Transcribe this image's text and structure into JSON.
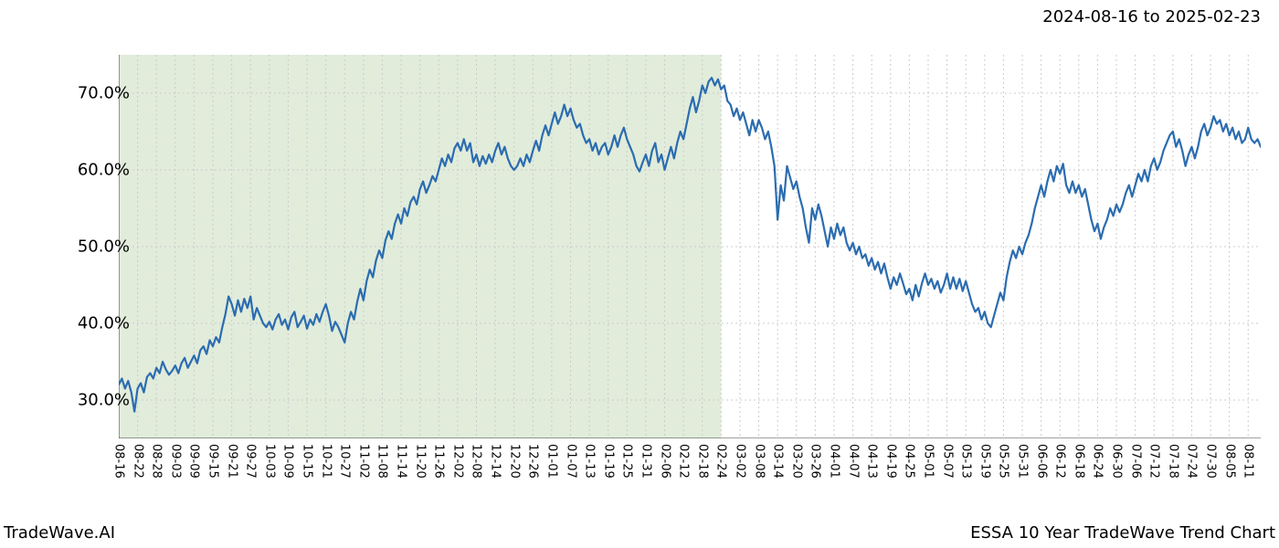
{
  "header": {
    "date_range": "2024-08-16 to 2025-02-23"
  },
  "footer": {
    "left": "TradeWave.AI",
    "right": "ESSA 10 Year TradeWave Trend Chart"
  },
  "chart": {
    "type": "line",
    "background_color": "#ffffff",
    "line_color": "#2b6cb0",
    "line_width": 2.2,
    "highlight_fill": "#dce9d5",
    "highlight_opacity": 0.85,
    "grid_color": "#cccccc",
    "grid_dash": "2,3",
    "axis_color": "#404040",
    "ylim": [
      25,
      75
    ],
    "xlim": [
      0,
      364
    ],
    "highlight_x": [
      0,
      192
    ],
    "y_ticks": [
      {
        "v": 30,
        "label": "30.0%"
      },
      {
        "v": 40,
        "label": "40.0%"
      },
      {
        "v": 50,
        "label": "50.0%"
      },
      {
        "v": 60,
        "label": "60.0%"
      },
      {
        "v": 70,
        "label": "70.0%"
      }
    ],
    "y_label_fontsize": 18,
    "x_ticks": [
      {
        "x": 0,
        "label": "08-16"
      },
      {
        "x": 6,
        "label": "08-22"
      },
      {
        "x": 12,
        "label": "08-28"
      },
      {
        "x": 18,
        "label": "09-03"
      },
      {
        "x": 24,
        "label": "09-09"
      },
      {
        "x": 30,
        "label": "09-15"
      },
      {
        "x": 36,
        "label": "09-21"
      },
      {
        "x": 42,
        "label": "09-27"
      },
      {
        "x": 48,
        "label": "10-03"
      },
      {
        "x": 54,
        "label": "10-09"
      },
      {
        "x": 60,
        "label": "10-15"
      },
      {
        "x": 66,
        "label": "10-21"
      },
      {
        "x": 72,
        "label": "10-27"
      },
      {
        "x": 78,
        "label": "11-02"
      },
      {
        "x": 84,
        "label": "11-08"
      },
      {
        "x": 90,
        "label": "11-14"
      },
      {
        "x": 96,
        "label": "11-20"
      },
      {
        "x": 102,
        "label": "11-26"
      },
      {
        "x": 108,
        "label": "12-02"
      },
      {
        "x": 114,
        "label": "12-08"
      },
      {
        "x": 120,
        "label": "12-14"
      },
      {
        "x": 126,
        "label": "12-20"
      },
      {
        "x": 132,
        "label": "12-26"
      },
      {
        "x": 138,
        "label": "01-01"
      },
      {
        "x": 144,
        "label": "01-07"
      },
      {
        "x": 150,
        "label": "01-13"
      },
      {
        "x": 156,
        "label": "01-19"
      },
      {
        "x": 162,
        "label": "01-25"
      },
      {
        "x": 168,
        "label": "01-31"
      },
      {
        "x": 174,
        "label": "02-06"
      },
      {
        "x": 180,
        "label": "02-12"
      },
      {
        "x": 186,
        "label": "02-18"
      },
      {
        "x": 192,
        "label": "02-24"
      },
      {
        "x": 198,
        "label": "03-02"
      },
      {
        "x": 204,
        "label": "03-08"
      },
      {
        "x": 210,
        "label": "03-14"
      },
      {
        "x": 216,
        "label": "03-20"
      },
      {
        "x": 222,
        "label": "03-26"
      },
      {
        "x": 228,
        "label": "04-01"
      },
      {
        "x": 234,
        "label": "04-07"
      },
      {
        "x": 240,
        "label": "04-13"
      },
      {
        "x": 246,
        "label": "04-19"
      },
      {
        "x": 252,
        "label": "04-25"
      },
      {
        "x": 258,
        "label": "05-01"
      },
      {
        "x": 264,
        "label": "05-07"
      },
      {
        "x": 270,
        "label": "05-13"
      },
      {
        "x": 276,
        "label": "05-19"
      },
      {
        "x": 282,
        "label": "05-25"
      },
      {
        "x": 288,
        "label": "05-31"
      },
      {
        "x": 294,
        "label": "06-06"
      },
      {
        "x": 300,
        "label": "06-12"
      },
      {
        "x": 306,
        "label": "06-18"
      },
      {
        "x": 312,
        "label": "06-24"
      },
      {
        "x": 318,
        "label": "06-30"
      },
      {
        "x": 324,
        "label": "07-06"
      },
      {
        "x": 330,
        "label": "07-12"
      },
      {
        "x": 336,
        "label": "07-18"
      },
      {
        "x": 342,
        "label": "07-24"
      },
      {
        "x": 348,
        "label": "07-30"
      },
      {
        "x": 354,
        "label": "08-05"
      },
      {
        "x": 360,
        "label": "08-11"
      }
    ],
    "x_label_fontsize": 13,
    "series": [
      32.0,
      32.8,
      31.5,
      32.5,
      31.0,
      28.5,
      31.5,
      32.2,
      31.0,
      33.0,
      33.5,
      32.8,
      34.2,
      33.5,
      35.0,
      34.0,
      33.3,
      33.8,
      34.5,
      33.5,
      34.8,
      35.5,
      34.2,
      35.0,
      35.8,
      34.8,
      36.5,
      37.0,
      36.0,
      37.8,
      37.0,
      38.2,
      37.5,
      39.5,
      41.2,
      43.5,
      42.5,
      41.0,
      43.0,
      41.5,
      43.2,
      42.0,
      43.5,
      40.5,
      42.0,
      41.0,
      40.0,
      39.5,
      40.2,
      39.2,
      40.5,
      41.2,
      39.8,
      40.5,
      39.2,
      40.8,
      41.5,
      39.5,
      40.2,
      41.0,
      39.3,
      40.5,
      39.8,
      41.2,
      40.2,
      41.5,
      42.5,
      41.0,
      39.0,
      40.2,
      39.5,
      38.5,
      37.5,
      40.0,
      41.5,
      40.5,
      42.8,
      44.5,
      43.0,
      45.5,
      47.0,
      46.0,
      48.2,
      49.5,
      48.5,
      50.8,
      52.0,
      51.0,
      53.0,
      54.2,
      53.0,
      55.0,
      54.0,
      55.8,
      56.5,
      55.5,
      57.5,
      58.5,
      57.0,
      58.0,
      59.2,
      58.5,
      60.0,
      61.5,
      60.5,
      62.0,
      61.0,
      62.8,
      63.5,
      62.5,
      64.0,
      62.5,
      63.5,
      61.0,
      62.0,
      60.5,
      61.8,
      60.8,
      62.0,
      61.0,
      62.5,
      63.5,
      62.0,
      63.0,
      61.5,
      60.5,
      60.0,
      60.5,
      61.5,
      60.5,
      62.0,
      61.0,
      62.5,
      63.8,
      62.5,
      64.5,
      65.8,
      64.5,
      66.0,
      67.5,
      66.0,
      67.0,
      68.5,
      67.0,
      68.0,
      66.5,
      65.5,
      66.0,
      64.5,
      63.5,
      64.0,
      62.5,
      63.5,
      62.0,
      63.0,
      63.5,
      62.0,
      63.0,
      64.5,
      63.0,
      64.5,
      65.5,
      64.0,
      63.0,
      62.0,
      60.5,
      59.8,
      61.0,
      62.0,
      60.5,
      62.5,
      63.5,
      61.0,
      62.0,
      60.0,
      61.5,
      63.0,
      61.5,
      63.5,
      65.0,
      64.0,
      66.0,
      68.0,
      69.5,
      67.5,
      69.0,
      71.0,
      70.0,
      71.5,
      72.0,
      71.0,
      71.8,
      70.5,
      71.0,
      69.0,
      68.5,
      67.0,
      68.0,
      66.5,
      67.5,
      66.0,
      64.5,
      66.5,
      65.0,
      66.5,
      65.5,
      64.0,
      65.0,
      63.0,
      60.5,
      53.5,
      58.0,
      56.0,
      60.5,
      59.0,
      57.5,
      58.5,
      56.5,
      55.0,
      52.5,
      50.5,
      55.0,
      53.5,
      55.5,
      54.0,
      52.0,
      50.0,
      52.5,
      51.0,
      53.0,
      51.5,
      52.5,
      50.5,
      49.5,
      50.5,
      49.0,
      50.0,
      48.5,
      49.0,
      47.5,
      48.5,
      47.0,
      48.0,
      46.5,
      47.8,
      46.0,
      44.5,
      46.0,
      45.0,
      46.5,
      45.2,
      43.8,
      44.5,
      43.0,
      45.0,
      43.5,
      45.2,
      46.5,
      45.0,
      45.8,
      44.5,
      45.5,
      44.0,
      45.0,
      46.5,
      44.5,
      46.0,
      44.5,
      45.8,
      44.2,
      45.5,
      44.0,
      42.5,
      41.5,
      42.0,
      40.5,
      41.5,
      40.0,
      39.5,
      41.0,
      42.5,
      44.0,
      43.0,
      46.0,
      48.0,
      49.5,
      48.5,
      50.0,
      49.0,
      50.5,
      51.5,
      53.0,
      55.0,
      56.5,
      58.0,
      56.5,
      58.5,
      60.0,
      58.5,
      60.5,
      59.5,
      60.8,
      58.0,
      57.0,
      58.5,
      57.0,
      58.0,
      56.5,
      57.5,
      55.5,
      53.5,
      52.0,
      53.0,
      51.0,
      52.5,
      53.5,
      55.0,
      54.0,
      55.5,
      54.5,
      55.5,
      57.0,
      58.0,
      56.5,
      58.0,
      59.5,
      58.5,
      60.0,
      58.5,
      60.5,
      61.5,
      60.0,
      61.0,
      62.5,
      63.5,
      64.5,
      65.0,
      63.0,
      64.0,
      62.5,
      60.5,
      62.0,
      63.0,
      61.5,
      63.0,
      65.0,
      66.0,
      64.5,
      65.5,
      67.0,
      66.0,
      66.5,
      65.0,
      66.0,
      64.5,
      65.5,
      64.0,
      65.0,
      63.5,
      64.0,
      65.5,
      64.0,
      63.5,
      64.0,
      63.0
    ]
  }
}
